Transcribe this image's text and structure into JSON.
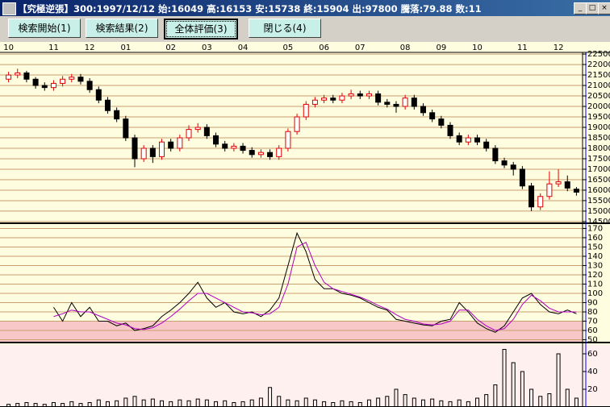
{
  "window": {
    "title": "【究極逆張】300:1997/12/12 始:16049 高:16153 安:15738 終:15904 出:97800 騰落:79.88 数:11"
  },
  "buttons": [
    "検索開始(1)",
    "検索結果(2)",
    "全体評価(3)",
    "閉じる(4)"
  ],
  "charts": [
    {
      "type": "candlestick",
      "grid": true,
      "up_color": "#e00000",
      "down_color": "#000000",
      "categories": [
        "10",
        null,
        null,
        null,
        null,
        "11",
        null,
        null,
        null,
        "12",
        null,
        null,
        null,
        "01",
        null,
        null,
        null,
        null,
        "02",
        null,
        null,
        null,
        "03",
        null,
        null,
        null,
        "04",
        null,
        null,
        null,
        null,
        "05",
        null,
        null,
        null,
        "06",
        null,
        null,
        null,
        "07",
        null,
        null,
        null,
        null,
        "08",
        null,
        null,
        null,
        "09",
        null,
        null,
        null,
        "10",
        null,
        null,
        null,
        null,
        "11",
        null,
        null,
        null,
        "12",
        null,
        null
      ],
      "open": [
        21300,
        21500,
        21600,
        21300,
        21000,
        20900,
        21100,
        21300,
        21400,
        21200,
        20800,
        20300,
        19800,
        19400,
        18500,
        17500,
        18000,
        17600,
        18300,
        18000,
        18500,
        18900,
        19000,
        18600,
        18200,
        18000,
        18100,
        17900,
        17700,
        17800,
        17600,
        18000,
        18800,
        19500,
        20100,
        20300,
        20400,
        20300,
        20500,
        20600,
        20500,
        20600,
        20200,
        20100,
        20000,
        20400,
        20000,
        19700,
        19400,
        19100,
        18600,
        18300,
        18500,
        18300,
        18000,
        17400,
        17200,
        17000,
        16200,
        15200,
        15700,
        16300,
        16400,
        16049
      ],
      "high": [
        21650,
        21800,
        21700,
        21400,
        21150,
        21250,
        21450,
        21550,
        21550,
        21350,
        20950,
        20450,
        19950,
        19550,
        18650,
        18150,
        18150,
        18450,
        18450,
        18650,
        19100,
        19200,
        19150,
        18750,
        18350,
        18250,
        18250,
        18050,
        17950,
        17950,
        18150,
        18950,
        19650,
        20250,
        20450,
        20550,
        20550,
        20650,
        20800,
        20750,
        20750,
        20750,
        20350,
        20250,
        20550,
        20550,
        20150,
        19850,
        19550,
        19250,
        18750,
        18650,
        18650,
        18450,
        18150,
        17550,
        17350,
        17150,
        16350,
        15850,
        16900,
        17000,
        16700,
        16153
      ],
      "low": [
        21150,
        21350,
        21150,
        20850,
        20750,
        20750,
        20950,
        21150,
        21050,
        20650,
        20150,
        19650,
        19250,
        18350,
        17100,
        17350,
        17300,
        17450,
        17850,
        17850,
        18350,
        18750,
        18450,
        18050,
        17850,
        17850,
        17750,
        17550,
        17550,
        17450,
        17450,
        17850,
        18650,
        19350,
        19950,
        20150,
        20150,
        20150,
        20350,
        20350,
        20350,
        20050,
        19950,
        19700,
        19850,
        19850,
        19550,
        19250,
        18950,
        18450,
        18150,
        18150,
        18150,
        17850,
        17250,
        17050,
        16700,
        16050,
        15000,
        15050,
        15550,
        16150,
        15950,
        15738
      ],
      "close": [
        21500,
        21600,
        21300,
        21000,
        20900,
        21100,
        21300,
        21400,
        21200,
        20800,
        20300,
        19800,
        19400,
        18500,
        17500,
        18000,
        17600,
        18300,
        18000,
        18500,
        18900,
        19000,
        18600,
        18200,
        18000,
        18100,
        17900,
        17700,
        17800,
        17600,
        18000,
        18800,
        19500,
        20100,
        20300,
        20400,
        20300,
        20500,
        20600,
        20500,
        20600,
        20200,
        20100,
        20000,
        20400,
        20000,
        19700,
        19400,
        19100,
        18600,
        18300,
        18500,
        18300,
        18000,
        17400,
        17200,
        17000,
        16200,
        15200,
        15700,
        16300,
        16400,
        16100,
        15904
      ],
      "ylim": [
        14420,
        22580
      ],
      "yticks": [
        14500,
        15000,
        15500,
        16000,
        16500,
        17000,
        17500,
        18000,
        18500,
        19000,
        19500,
        20000,
        20500,
        21000,
        21500,
        22000,
        22500
      ]
    },
    {
      "type": "line",
      "grid": true,
      "shade_below": 70,
      "shade_color": "#f8c8c8",
      "series": [
        {
          "color": "#000000",
          "values": [
            null,
            null,
            null,
            null,
            null,
            85,
            70,
            90,
            75,
            85,
            70,
            70,
            65,
            68,
            60,
            62,
            65,
            75,
            82,
            90,
            100,
            112,
            95,
            85,
            90,
            80,
            78,
            80,
            75,
            82,
            95,
            130,
            165,
            145,
            115,
            105,
            105,
            100,
            98,
            95,
            90,
            85,
            82,
            72,
            70,
            68,
            66,
            65,
            70,
            72,
            90,
            80,
            68,
            62,
            58,
            65,
            80,
            95,
            100,
            88,
            80,
            78,
            82,
            78
          ]
        },
        {
          "color": "#b000c0",
          "values": [
            null,
            null,
            null,
            null,
            null,
            75,
            78,
            82,
            80,
            80,
            76,
            72,
            68,
            66,
            62,
            61,
            63,
            68,
            75,
            83,
            92,
            100,
            100,
            95,
            90,
            85,
            80,
            79,
            77,
            78,
            85,
            110,
            150,
            155,
            130,
            112,
            105,
            102,
            99,
            96,
            92,
            87,
            83,
            77,
            72,
            70,
            67,
            66,
            67,
            70,
            82,
            82,
            72,
            65,
            60,
            62,
            72,
            88,
            98,
            92,
            84,
            80,
            80,
            80
          ]
        }
      ],
      "ylim": [
        47,
        173
      ],
      "yticks": [
        50,
        60,
        70,
        80,
        90,
        100,
        110,
        120,
        130,
        140,
        150,
        160,
        170
      ]
    },
    {
      "type": "bar",
      "grid": false,
      "color": "#000000",
      "background": "#fff0f0",
      "values": [
        3,
        4,
        5,
        4,
        3,
        5,
        4,
        6,
        4,
        5,
        8,
        6,
        7,
        10,
        12,
        8,
        9,
        7,
        6,
        8,
        7,
        9,
        8,
        6,
        7,
        5,
        6,
        8,
        10,
        22,
        12,
        8,
        7,
        10,
        8,
        6,
        5,
        7,
        6,
        5,
        8,
        10,
        12,
        20,
        14,
        10,
        8,
        9,
        7,
        6,
        8,
        6,
        10,
        14,
        25,
        65,
        50,
        40,
        20,
        12,
        15,
        60,
        20,
        10
      ],
      "ylim": [
        0,
        70
      ],
      "yticks": [
        20,
        40,
        60
      ]
    }
  ]
}
